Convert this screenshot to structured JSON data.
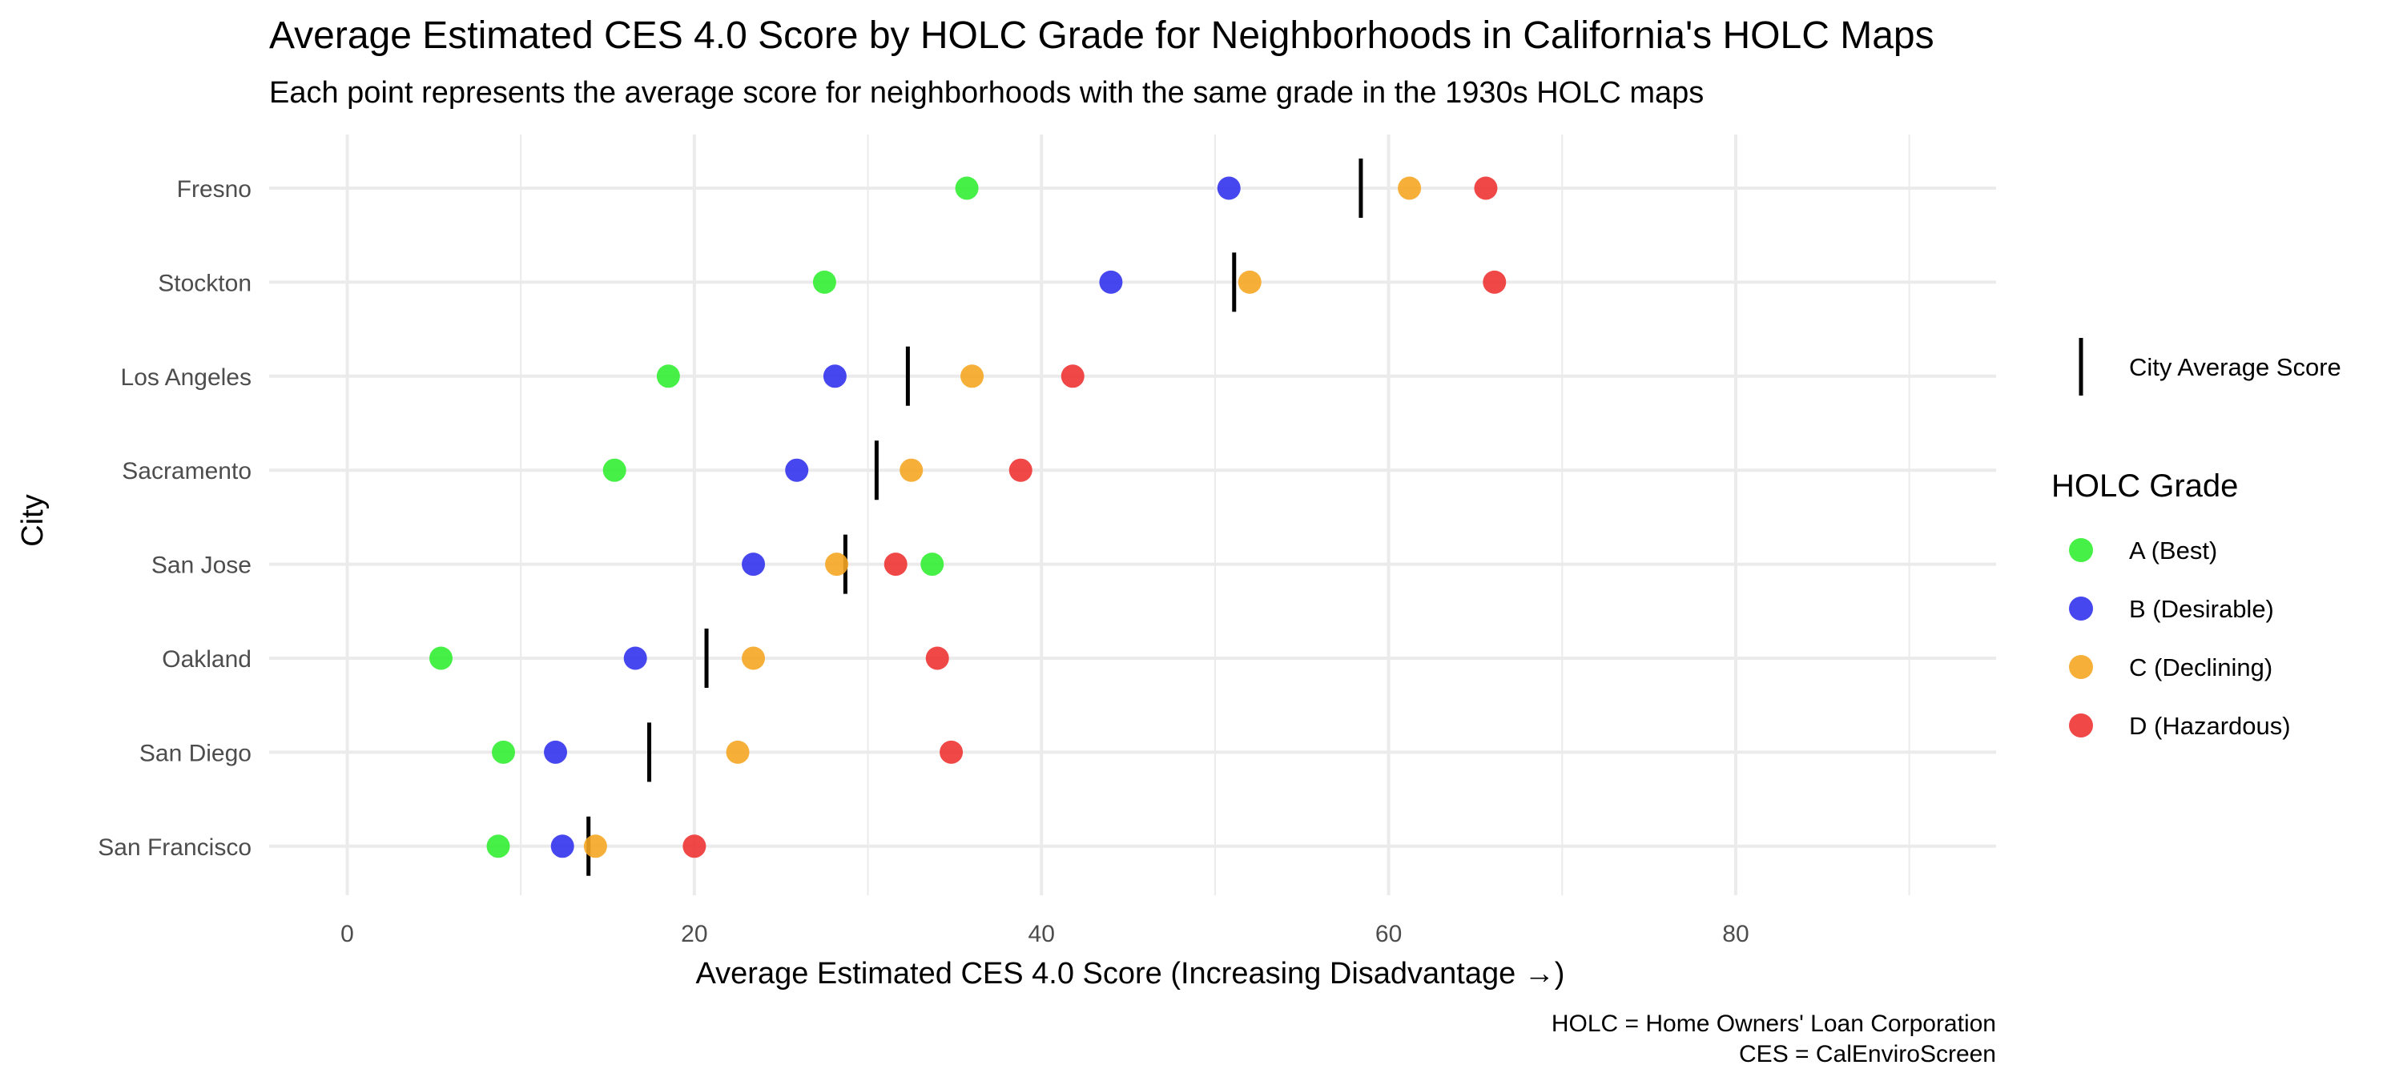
{
  "chart_data": {
    "type": "scatter",
    "title": "Average Estimated CES 4.0 Score by HOLC Grade for Neighborhoods in California's HOLC Maps",
    "subtitle": "Each point represents the average score for neighborhoods with the same grade in the 1930s HOLC maps",
    "xlabel": "Average Estimated CES 4.0 Score (Increasing Disadvantage →)",
    "ylabel": "City",
    "xlim": [
      -4.5,
      95
    ],
    "xticks": [
      0,
      20,
      40,
      60,
      80
    ],
    "xtick_labels": [
      "0",
      "20",
      "40",
      "60",
      "80"
    ],
    "grid": true,
    "legend_position": "right",
    "categories": [
      "Fresno",
      "Stockton",
      "Los Angeles",
      "Sacramento",
      "San Jose",
      "Oakland",
      "San Diego",
      "San Francisco"
    ],
    "series": [
      {
        "name": "A (Best)",
        "color": "#33ee33",
        "values": [
          35.7,
          27.5,
          18.5,
          15.4,
          33.7,
          5.4,
          9.0,
          8.7
        ]
      },
      {
        "name": "B (Desirable)",
        "color": "#3333ee",
        "values": [
          50.8,
          44.0,
          28.1,
          25.9,
          23.4,
          16.6,
          12.0,
          12.4
        ]
      },
      {
        "name": "C (Declining)",
        "color": "#f5a623",
        "values": [
          61.2,
          52.0,
          36.0,
          32.5,
          28.2,
          23.4,
          22.5,
          14.3
        ]
      },
      {
        "name": "D (Hazardous)",
        "color": "#ee3333",
        "values": [
          65.6,
          66.1,
          41.8,
          38.8,
          31.6,
          34.0,
          34.8,
          20.0
        ]
      }
    ],
    "city_average": {
      "name": "City Average Score",
      "color": "#000000",
      "values": [
        58.4,
        51.1,
        32.3,
        30.5,
        28.7,
        20.7,
        17.4,
        13.9
      ]
    },
    "legend_title": "HOLC Grade",
    "caption_lines": [
      "HOLC = Home Owners' Loan Corporation",
      "CES = CalEnviroScreen"
    ]
  }
}
